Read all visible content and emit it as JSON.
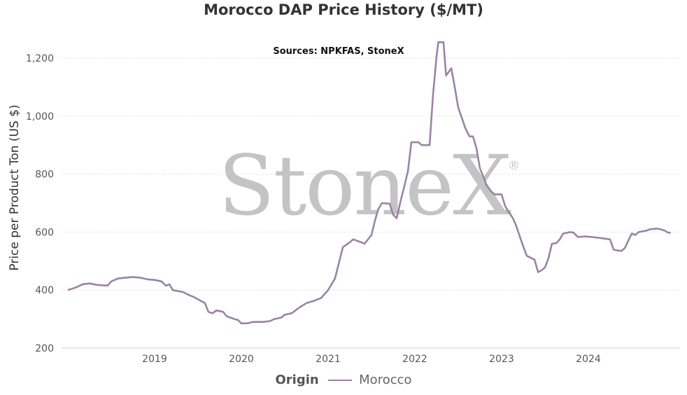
{
  "chart_data": {
    "type": "line",
    "title": "Morocco DAP Price History ($/MT)",
    "subtitle": "Sources: NPKFAS, StoneX",
    "watermark": "StoneX",
    "xlabel": "",
    "ylabel": "Price per Product Ton (US $)",
    "ylim": [
      200,
      1300
    ],
    "yticks": [
      200,
      400,
      600,
      800,
      1000,
      1200
    ],
    "xticks": [
      2019,
      2020,
      2021,
      2022,
      2023,
      2024
    ],
    "xlim": [
      2018.0,
      2024.95
    ],
    "grid": "horizontal-dotted",
    "legend": {
      "title": "Origin",
      "placement": "bottom-center"
    },
    "series": [
      {
        "name": "Morocco",
        "color": "#9a84a2",
        "points": [
          [
            2018.0,
            400
          ],
          [
            2018.1,
            410
          ],
          [
            2018.17,
            420
          ],
          [
            2018.25,
            423
          ],
          [
            2018.33,
            418
          ],
          [
            2018.42,
            416
          ],
          [
            2018.46,
            416
          ],
          [
            2018.5,
            430
          ],
          [
            2018.58,
            440
          ],
          [
            2018.67,
            443
          ],
          [
            2018.75,
            445
          ],
          [
            2018.83,
            443
          ],
          [
            2018.92,
            437
          ],
          [
            2019.0,
            435
          ],
          [
            2019.08,
            430
          ],
          [
            2019.13,
            415
          ],
          [
            2019.17,
            420
          ],
          [
            2019.21,
            400
          ],
          [
            2019.33,
            393
          ],
          [
            2019.38,
            385
          ],
          [
            2019.46,
            375
          ],
          [
            2019.58,
            355
          ],
          [
            2019.62,
            325
          ],
          [
            2019.67,
            320
          ],
          [
            2019.71,
            330
          ],
          [
            2019.79,
            325
          ],
          [
            2019.83,
            310
          ],
          [
            2019.92,
            300
          ],
          [
            2019.96,
            297
          ],
          [
            2020.0,
            285
          ],
          [
            2020.08,
            286
          ],
          [
            2020.13,
            290
          ],
          [
            2020.25,
            290
          ],
          [
            2020.33,
            293
          ],
          [
            2020.38,
            300
          ],
          [
            2020.46,
            305
          ],
          [
            2020.5,
            315
          ],
          [
            2020.58,
            320
          ],
          [
            2020.67,
            340
          ],
          [
            2020.75,
            355
          ],
          [
            2020.83,
            362
          ],
          [
            2020.92,
            373
          ],
          [
            2021.0,
            400
          ],
          [
            2021.08,
            440
          ],
          [
            2021.13,
            500
          ],
          [
            2021.17,
            548
          ],
          [
            2021.25,
            565
          ],
          [
            2021.29,
            575
          ],
          [
            2021.38,
            565
          ],
          [
            2021.42,
            560
          ],
          [
            2021.5,
            590
          ],
          [
            2021.54,
            640
          ],
          [
            2021.58,
            680
          ],
          [
            2021.62,
            700
          ],
          [
            2021.71,
            698
          ],
          [
            2021.75,
            660
          ],
          [
            2021.79,
            648
          ],
          [
            2021.83,
            700
          ],
          [
            2021.88,
            760
          ],
          [
            2021.92,
            810
          ],
          [
            2021.96,
            910
          ],
          [
            2022.04,
            910
          ],
          [
            2022.08,
            900
          ],
          [
            2022.17,
            900
          ],
          [
            2022.21,
            1075
          ],
          [
            2022.25,
            1205
          ],
          [
            2022.27,
            1255
          ],
          [
            2022.33,
            1255
          ],
          [
            2022.36,
            1140
          ],
          [
            2022.42,
            1165
          ],
          [
            2022.46,
            1100
          ],
          [
            2022.5,
            1030
          ],
          [
            2022.58,
            960
          ],
          [
            2022.63,
            930
          ],
          [
            2022.67,
            930
          ],
          [
            2022.71,
            890
          ],
          [
            2022.75,
            820
          ],
          [
            2022.79,
            790
          ],
          [
            2022.83,
            760
          ],
          [
            2022.88,
            740
          ],
          [
            2022.92,
            730
          ],
          [
            2023.0,
            730
          ],
          [
            2023.04,
            690
          ],
          [
            2023.08,
            670
          ],
          [
            2023.13,
            648
          ],
          [
            2023.17,
            620
          ],
          [
            2023.21,
            585
          ],
          [
            2023.25,
            550
          ],
          [
            2023.29,
            518
          ],
          [
            2023.38,
            505
          ],
          [
            2023.42,
            462
          ],
          [
            2023.46,
            468
          ],
          [
            2023.5,
            478
          ],
          [
            2023.54,
            510
          ],
          [
            2023.58,
            560
          ],
          [
            2023.63,
            562
          ],
          [
            2023.67,
            575
          ],
          [
            2023.71,
            595
          ],
          [
            2023.79,
            600
          ],
          [
            2023.83,
            598
          ],
          [
            2023.88,
            583
          ],
          [
            2023.96,
            585
          ],
          [
            2024.04,
            583
          ],
          [
            2024.13,
            580
          ],
          [
            2024.25,
            575
          ],
          [
            2024.29,
            540
          ],
          [
            2024.33,
            537
          ],
          [
            2024.38,
            535
          ],
          [
            2024.42,
            545
          ],
          [
            2024.46,
            570
          ],
          [
            2024.5,
            595
          ],
          [
            2024.54,
            590
          ],
          [
            2024.58,
            600
          ],
          [
            2024.67,
            605
          ],
          [
            2024.71,
            610
          ],
          [
            2024.79,
            612
          ],
          [
            2024.83,
            610
          ],
          [
            2024.88,
            605
          ],
          [
            2024.92,
            598
          ],
          [
            2024.95,
            598
          ]
        ]
      }
    ]
  }
}
